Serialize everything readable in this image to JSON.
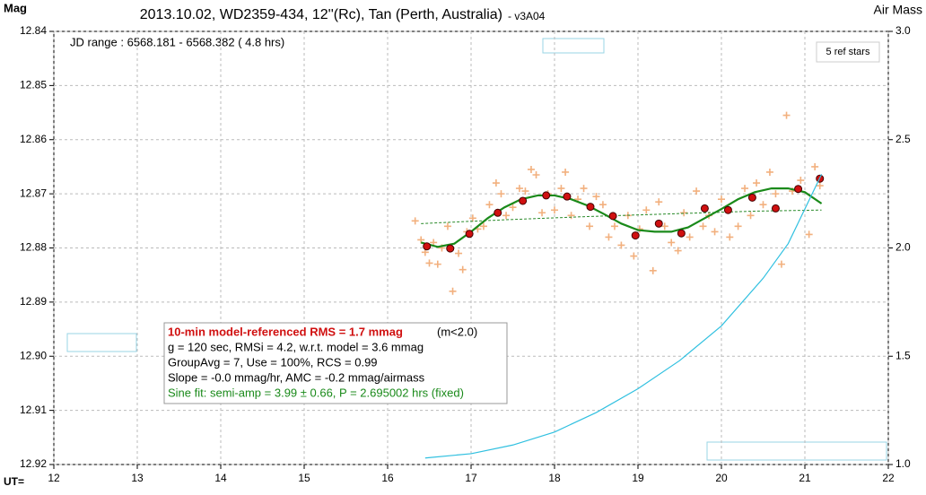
{
  "chart_data": {
    "type": "scatter",
    "title": "2013.10.02, WD2359-434, 12''(Rc), Tan (Perth, Australia)",
    "subtitle": "- v3A04",
    "ylabel": "Mag",
    "y2label": "Air Mass",
    "xlabel": "UT=",
    "annotations": {
      "jd_range": "JD range : 6568.181 - 6568.382 ( 4.8 hrs)",
      "ref_stars": "5 ref stars",
      "rms": "10-min model-referenced RMS = 1.7 mmag",
      "rms_note": "(m<2.0)",
      "lines": [
        "g = 120 sec, RMSi = 4.2, w.r.t. model = 3.6 mmag",
        "GroupAvg = 7, Use = 100%, RCS = 0.99",
        "Slope = -0.0 mmag/hr, AMC = -0.2 mmag/airmass"
      ],
      "sine_fit": "Sine fit: semi-amp = 3.99 ± 0.66, P = 2.695002 hrs (fixed)"
    },
    "xlim": [
      12,
      22
    ],
    "xticks": [
      12,
      13,
      14,
      15,
      16,
      17,
      18,
      19,
      20,
      21,
      22
    ],
    "ylim": [
      12.92,
      12.84
    ],
    "yticks": [
      12.84,
      12.85,
      12.86,
      12.87,
      12.88,
      12.89,
      {
        "value": 12.9,
        "label": "12.90"
      },
      12.91,
      12.92
    ],
    "y2lim": [
      1.0,
      3.0
    ],
    "y2ticks": [
      {
        "value": 3,
        "label": "3.0"
      },
      2.5,
      {
        "value": 2,
        "label": "2.0"
      },
      1.5,
      {
        "value": 1,
        "label": "1.0"
      }
    ],
    "grid": true,
    "series": [
      {
        "marker": "cross",
        "color": "#f2b07e",
        "x": [
          16.33,
          16.4,
          16.45,
          16.5,
          16.55,
          16.6,
          16.65,
          16.72,
          16.78,
          16.85,
          16.9,
          16.95,
          17.02,
          17.08,
          17.15,
          17.22,
          17.3,
          17.36,
          17.42,
          17.5,
          17.58,
          17.65,
          17.72,
          17.78,
          17.85,
          17.92,
          18.0,
          18.08,
          18.13,
          18.2,
          18.28,
          18.35,
          18.42,
          18.5,
          18.58,
          18.65,
          18.72,
          18.8,
          18.88,
          18.95,
          19.02,
          19.1,
          19.18,
          19.25,
          19.32,
          19.4,
          19.48,
          19.55,
          19.62,
          19.7,
          19.78,
          19.85,
          19.92,
          20.0,
          20.1,
          20.2,
          20.28,
          20.35,
          20.42,
          20.5,
          20.58,
          20.65,
          20.72,
          20.78,
          20.85,
          20.95,
          21.05,
          21.12,
          21.18
        ],
        "values": [
          12.875,
          12.8785,
          12.8808,
          12.8828,
          12.879,
          12.883,
          12.88,
          12.876,
          12.888,
          12.881,
          12.884,
          12.877,
          12.8745,
          12.8765,
          12.876,
          12.872,
          12.868,
          12.87,
          12.874,
          12.8725,
          12.869,
          12.8695,
          12.8655,
          12.8665,
          12.8735,
          12.87,
          12.873,
          12.869,
          12.866,
          12.874,
          12.871,
          12.869,
          12.876,
          12.8705,
          12.872,
          12.878,
          12.876,
          12.8795,
          12.874,
          12.8815,
          12.8765,
          12.873,
          12.8842,
          12.8715,
          12.876,
          12.879,
          12.8805,
          12.8735,
          12.878,
          12.8695,
          12.876,
          12.874,
          12.877,
          12.871,
          12.878,
          12.876,
          12.869,
          12.874,
          12.868,
          12.872,
          12.866,
          12.87,
          12.883,
          12.8555,
          12.8695,
          12.8675,
          12.8775,
          12.865,
          12.8685
        ]
      },
      {
        "marker": "line",
        "color": "#2a8a2a",
        "dashed": true,
        "x": [
          16.4,
          17.4,
          18.4,
          19.4,
          20.4,
          21.2
        ],
        "values": [
          12.8755,
          12.8748,
          12.8742,
          12.8737,
          12.8732,
          12.873
        ]
      },
      {
        "marker": "line",
        "color": "#1a8a1a",
        "x": [
          16.4,
          16.6,
          16.8,
          17.0,
          17.2,
          17.4,
          17.6,
          17.8,
          18.0,
          18.2,
          18.4,
          18.6,
          18.8,
          19.0,
          19.2,
          19.4,
          19.6,
          19.8,
          20.0,
          20.2,
          20.4,
          20.6,
          20.8,
          21.0,
          21.2
        ],
        "values": [
          12.879,
          12.8798,
          12.8792,
          12.877,
          12.8745,
          12.8725,
          12.871,
          12.8703,
          12.8703,
          12.871,
          12.8722,
          12.8738,
          12.8755,
          12.8767,
          12.877,
          12.877,
          12.8762,
          12.8745,
          12.8728,
          12.871,
          12.8697,
          12.869,
          12.869,
          12.8697,
          12.8718
        ]
      },
      {
        "marker": "circle",
        "color": "#d01010",
        "x": [
          16.47,
          16.75,
          16.98,
          17.32,
          17.62,
          17.9,
          18.15,
          18.43,
          18.7,
          18.97,
          19.25,
          19.52,
          19.8,
          20.08,
          20.37,
          20.65,
          20.92,
          21.18
        ],
        "values": [
          12.8797,
          12.8801,
          12.8774,
          12.8735,
          12.8713,
          12.8703,
          12.8705,
          12.8724,
          12.8741,
          12.8777,
          12.8755,
          12.8773,
          12.8727,
          12.873,
          12.8707,
          12.8727,
          12.8691,
          12.8672
        ]
      },
      {
        "marker": "line",
        "color": "#30c0e0",
        "axis": "y2",
        "x": [
          16.45,
          17,
          17.5,
          18,
          18.5,
          19,
          19.5,
          20,
          20.5,
          20.8,
          21,
          21.2
        ],
        "values": [
          1.03,
          1.05,
          1.09,
          1.15,
          1.24,
          1.35,
          1.48,
          1.64,
          1.86,
          2.02,
          2.18,
          2.34
        ]
      }
    ]
  }
}
